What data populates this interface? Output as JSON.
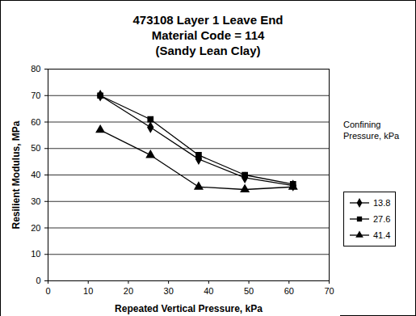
{
  "chart_data": {
    "type": "line",
    "title": [
      "473108 Layer 1 Leave End",
      "Material Code = 114",
      "(Sandy Lean Clay)"
    ],
    "x_label": "Repeated Vertical Pressure, kPa",
    "y_label": "Resilient Modulus, MPa",
    "x": [
      13,
      25.5,
      37.5,
      49,
      61
    ],
    "series": [
      {
        "name": "13.8",
        "color": "#000000",
        "marker": "diamond",
        "values": [
          70,
          58,
          46,
          39,
          36
        ]
      },
      {
        "name": "27.6",
        "color": "#000000",
        "marker": "square",
        "values": [
          70,
          61,
          47.5,
          40,
          36.5
        ]
      },
      {
        "name": "41.4",
        "color": "#000000",
        "marker": "triangle",
        "values": [
          57,
          47.5,
          35.5,
          34.5,
          35.5
        ]
      }
    ],
    "xlim": [
      0,
      70
    ],
    "xticks": [
      0,
      10,
      20,
      30,
      40,
      50,
      60,
      70
    ],
    "ylim": [
      0,
      80
    ],
    "yticks": [
      0,
      10,
      20,
      30,
      40,
      50,
      60,
      70,
      80
    ],
    "grid": true,
    "legend": "right",
    "legend_title": "Confining Pressure, kPa"
  }
}
